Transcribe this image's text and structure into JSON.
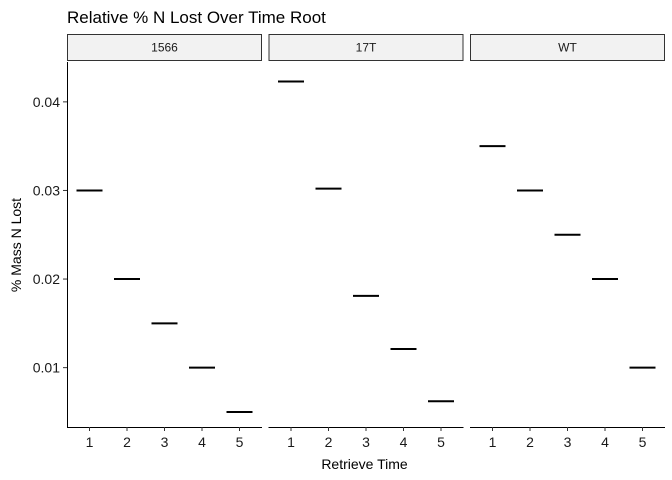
{
  "chart_data": {
    "type": "scatter",
    "mark": "horizontal-segment",
    "title": "Relative % N Lost Over Time Root",
    "xlabel": "Retrieve Time",
    "ylabel": "% Mass N Lost",
    "x": [
      1,
      2,
      3,
      4,
      5
    ],
    "x_tick_labels": [
      "1",
      "2",
      "3",
      "4",
      "5"
    ],
    "y_ticks": [
      0.01,
      0.02,
      0.03,
      0.04
    ],
    "y_tick_labels": [
      "0.01",
      "0.02",
      "0.03",
      "0.04"
    ],
    "ylim": [
      0.0033,
      0.0445
    ],
    "xlim": [
      0.4,
      5.6
    ],
    "grid": false,
    "panels": [
      {
        "label": "1566",
        "values": [
          0.03,
          0.02,
          0.015,
          0.01,
          0.005
        ]
      },
      {
        "label": "17T",
        "values": [
          0.0423,
          0.0302,
          0.0181,
          0.0121,
          0.0062
        ]
      },
      {
        "label": "WT",
        "values": [
          0.035,
          0.03,
          0.025,
          0.02,
          0.01
        ]
      }
    ],
    "colors": {
      "mark": "#000000",
      "strip_fill": "#F2F2F2",
      "strip_border": "#333333"
    }
  }
}
